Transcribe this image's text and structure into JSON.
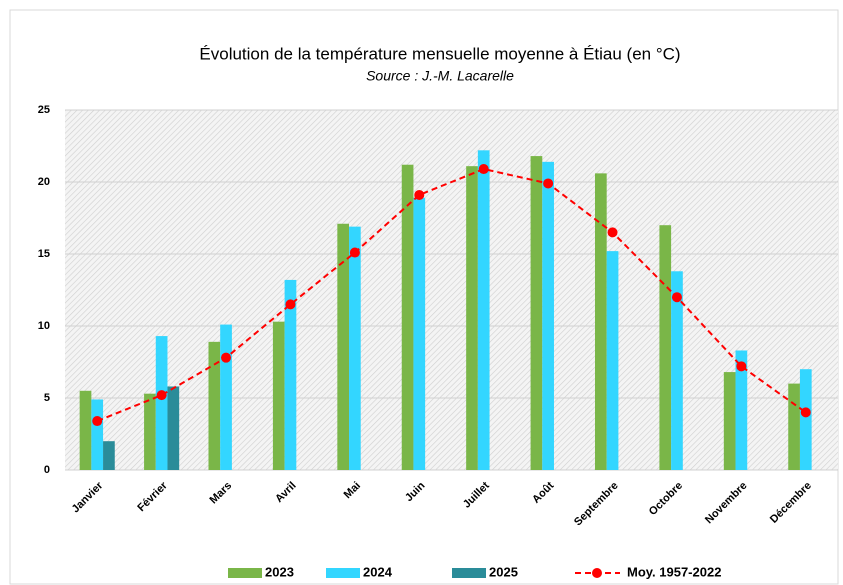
{
  "chart_data": {
    "type": "bar",
    "title": "Évolution de la température mensuelle moyenne à Étiau (en °C)",
    "subtitle": "Source : J.-M. Lacarelle",
    "categories": [
      "Janvier",
      "Février",
      "Mars",
      "Avril",
      "Mai",
      "Juin",
      "Juillet",
      "Août",
      "Septembre",
      "Octobre",
      "Novembre",
      "Décembre"
    ],
    "series": [
      {
        "name": "2023",
        "type": "bar",
        "color": "#7ab648",
        "values": [
          5.5,
          5.3,
          8.9,
          10.3,
          17.1,
          21.2,
          21.1,
          21.8,
          20.6,
          17.0,
          6.8,
          6.0
        ]
      },
      {
        "name": "2024",
        "type": "bar",
        "color": "#33d6ff",
        "values": [
          4.9,
          9.3,
          10.1,
          13.2,
          16.9,
          18.9,
          22.2,
          21.4,
          15.2,
          13.8,
          8.3,
          7.0
        ]
      },
      {
        "name": "2025",
        "type": "bar",
        "color": "#2a8c99",
        "values": [
          2.0,
          5.8,
          null,
          null,
          null,
          null,
          null,
          null,
          null,
          null,
          null,
          null
        ]
      },
      {
        "name": "Moy. 1957-2022",
        "type": "line",
        "color": "#ff0000",
        "values": [
          3.4,
          5.2,
          7.8,
          11.5,
          15.1,
          19.1,
          20.9,
          19.9,
          16.5,
          12.0,
          7.2,
          4.0
        ]
      }
    ],
    "ylim": [
      0,
      25
    ],
    "yticks": [
      0,
      5,
      10,
      15,
      20,
      25
    ],
    "grid": true,
    "legend": "bottom"
  }
}
